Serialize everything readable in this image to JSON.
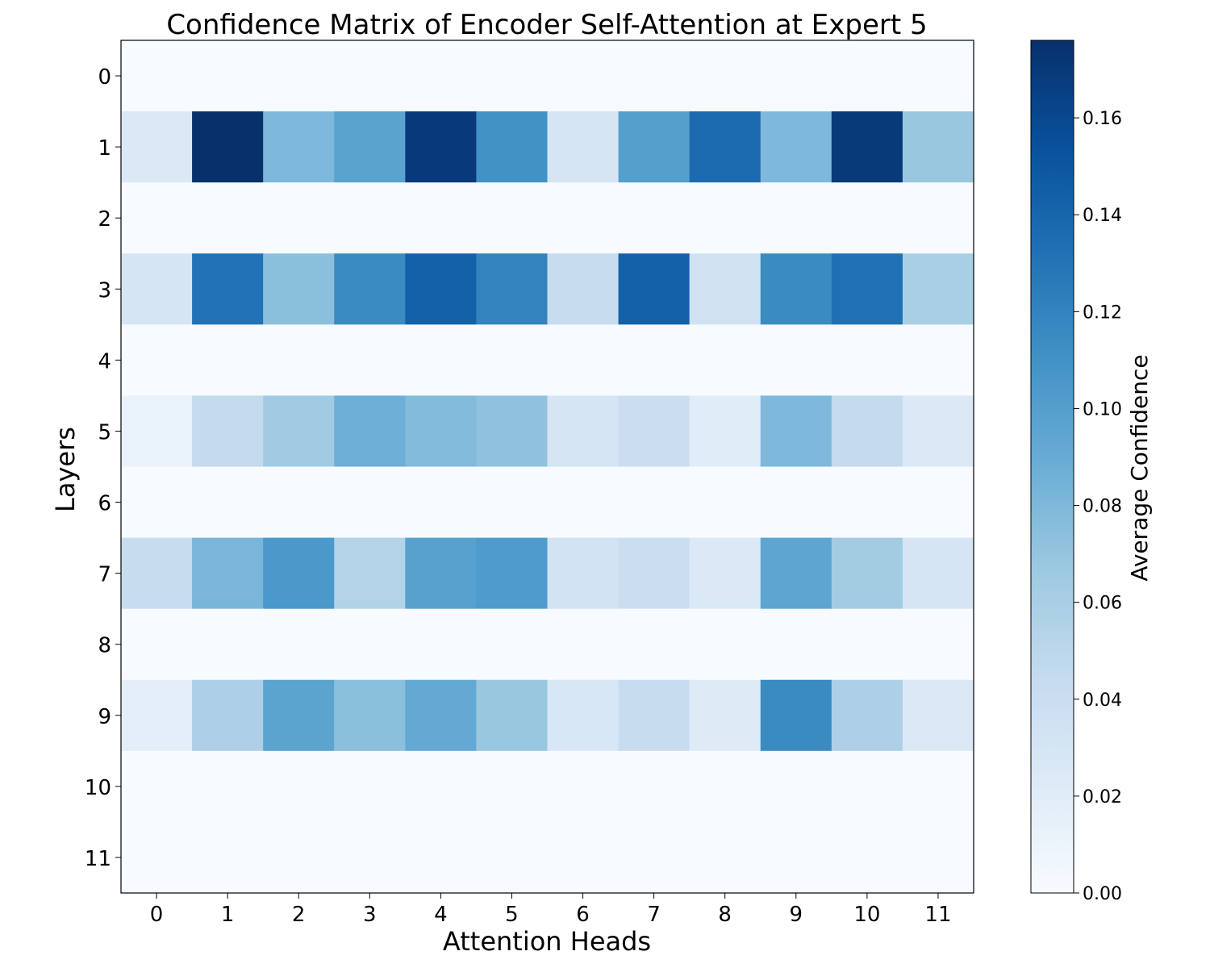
{
  "chart_data": {
    "type": "heatmap",
    "title": "Confidence Matrix of Encoder Self-Attention at Expert 5",
    "xlabel": "Attention Heads",
    "ylabel": "Layers",
    "x_categories": [
      "0",
      "1",
      "2",
      "3",
      "4",
      "5",
      "6",
      "7",
      "8",
      "9",
      "10",
      "11"
    ],
    "y_categories": [
      "0",
      "1",
      "2",
      "3",
      "4",
      "5",
      "6",
      "7",
      "8",
      "9",
      "10",
      "11"
    ],
    "values": [
      [
        0,
        0,
        0,
        0,
        0,
        0,
        0,
        0,
        0,
        0,
        0,
        0
      ],
      [
        0.025,
        0.176,
        0.08,
        0.097,
        0.169,
        0.11,
        0.03,
        0.1,
        0.136,
        0.08,
        0.17,
        0.068
      ],
      [
        0,
        0,
        0,
        0,
        0,
        0,
        0,
        0,
        0,
        0,
        0,
        0
      ],
      [
        0.03,
        0.131,
        0.074,
        0.115,
        0.143,
        0.12,
        0.043,
        0.143,
        0.035,
        0.115,
        0.133,
        0.06
      ],
      [
        0,
        0,
        0,
        0,
        0,
        0,
        0,
        0,
        0,
        0,
        0,
        0
      ],
      [
        0.012,
        0.045,
        0.065,
        0.087,
        0.078,
        0.072,
        0.03,
        0.04,
        0.02,
        0.08,
        0.045,
        0.025
      ],
      [
        0,
        0,
        0,
        0,
        0,
        0,
        0,
        0,
        0,
        0,
        0,
        0
      ],
      [
        0.042,
        0.082,
        0.105,
        0.055,
        0.098,
        0.103,
        0.033,
        0.04,
        0.025,
        0.095,
        0.063,
        0.03
      ],
      [
        0,
        0,
        0,
        0,
        0,
        0,
        0,
        0,
        0,
        0,
        0,
        0
      ],
      [
        0.018,
        0.058,
        0.096,
        0.074,
        0.092,
        0.068,
        0.028,
        0.042,
        0.022,
        0.115,
        0.058,
        0.025
      ],
      [
        0,
        0,
        0,
        0,
        0,
        0,
        0,
        0,
        0,
        0,
        0,
        0
      ],
      [
        0,
        0,
        0,
        0,
        0,
        0,
        0,
        0,
        0,
        0,
        0,
        0
      ]
    ],
    "colormap": "Blues",
    "colorbar": {
      "label": "Average Confidence",
      "min": 0,
      "max": 0.176,
      "ticks": [
        "0.00",
        "0.02",
        "0.04",
        "0.06",
        "0.08",
        "0.10",
        "0.12",
        "0.14",
        "0.16"
      ]
    },
    "grid": false,
    "legend": "none"
  }
}
